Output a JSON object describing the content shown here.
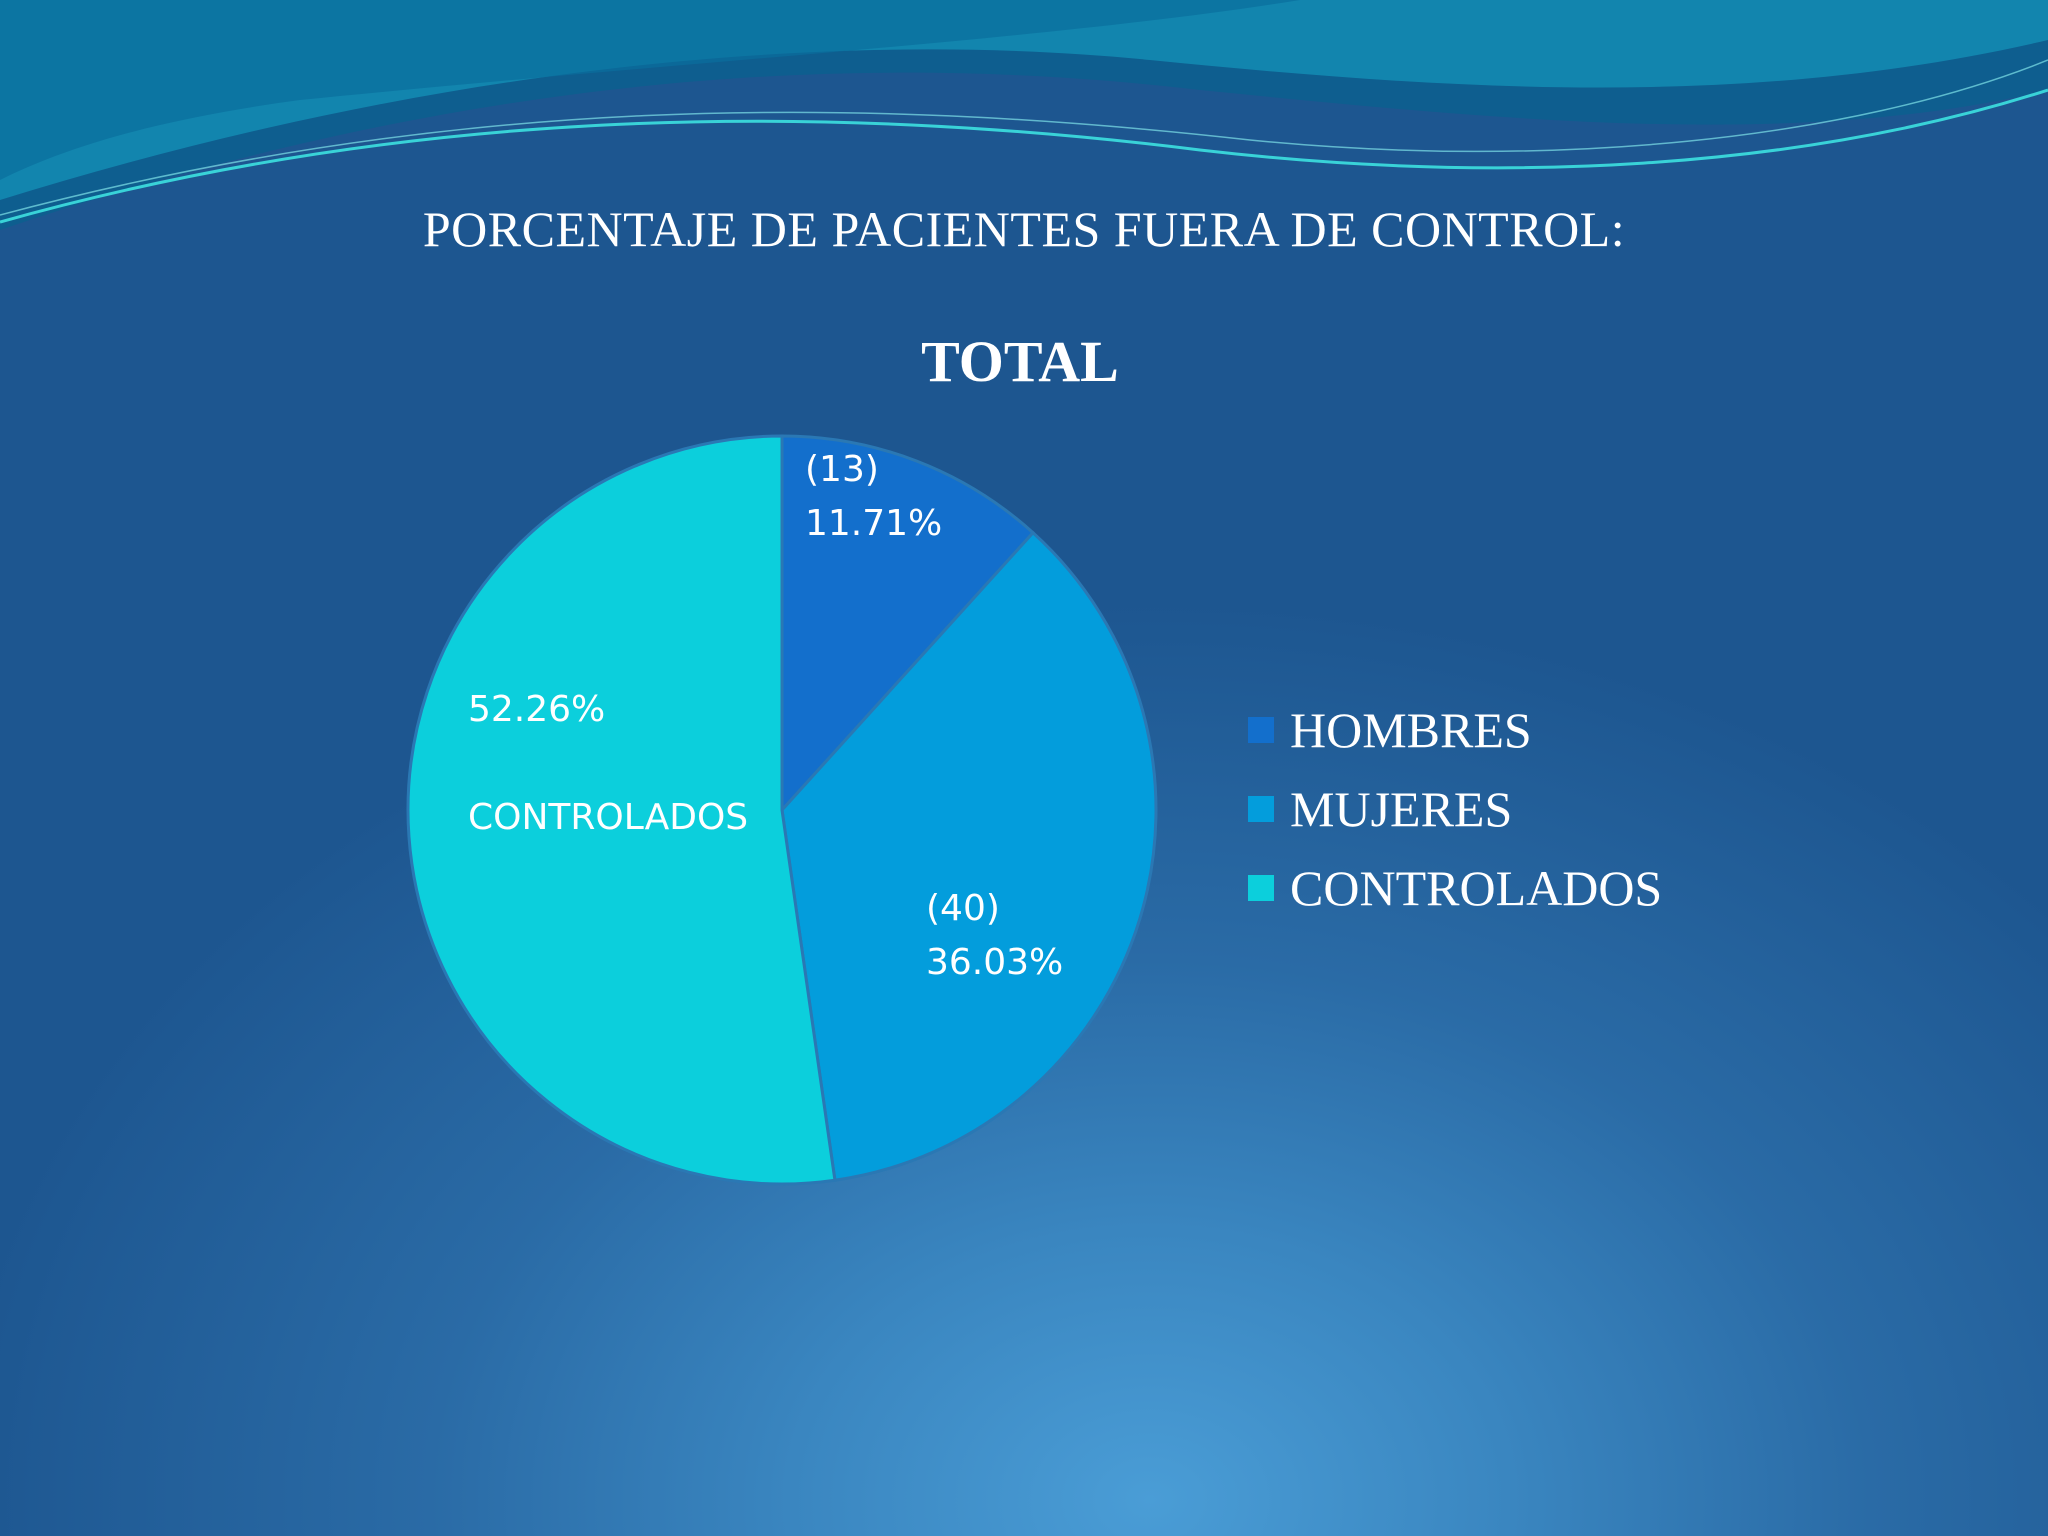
{
  "slide": {
    "title": "PORCENTAJE DE PACIENTES FUERA DE CONTROL:"
  },
  "chart_data": {
    "type": "pie",
    "title": "TOTAL",
    "legend_position": "right",
    "slices": [
      {
        "name": "HOMBRES",
        "value": 11.71,
        "count_label": "(13)",
        "value_label": "11.71%",
        "color": "#136fcc"
      },
      {
        "name": "MUJERES",
        "value": 36.03,
        "count_label": "(40)",
        "value_label": "36.03%",
        "color": "#039ddc"
      },
      {
        "name": "CONTROLADOS",
        "value": 52.26,
        "count_label": "",
        "value_label": "52.26%",
        "category_label": "CONTROLADOS",
        "color": "#0ccfdc"
      }
    ]
  },
  "legend": {
    "items": [
      {
        "label": "HOMBRES",
        "color": "#136fcc"
      },
      {
        "label": "MUJERES",
        "color": "#039ddc"
      },
      {
        "label": "CONTROLADOS",
        "color": "#0ccfdc"
      }
    ]
  }
}
